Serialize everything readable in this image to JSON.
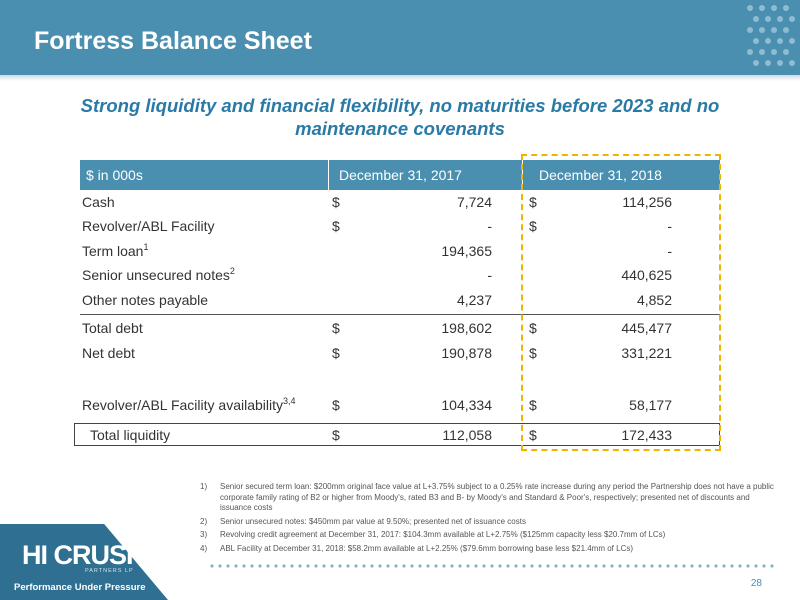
{
  "header": {
    "title": "Fortress Balance Sheet"
  },
  "subtitle": "Strong liquidity and financial flexibility, no maturities before 2023 and no maintenance covenants",
  "table": {
    "columns": [
      "$ in 000s",
      "December 31, 2017",
      "December 31, 2018"
    ],
    "rows": [
      {
        "label": "Cash",
        "sup": "",
        "d1": "$",
        "v1": "7,724",
        "d2": "$",
        "v2": "114,256"
      },
      {
        "label": "Revolver/ABL Facility",
        "sup": "",
        "d1": "$",
        "v1": "-",
        "d2": "$",
        "v2": "-"
      },
      {
        "label": "Term loan",
        "sup": "1",
        "d1": "",
        "v1": "194,365",
        "d2": "",
        "v2": "-"
      },
      {
        "label": "Senior unsecured notes",
        "sup": "2",
        "d1": "",
        "v1": "-",
        "d2": "",
        "v2": "440,625"
      },
      {
        "label": "Other notes payable",
        "sup": "",
        "d1": "",
        "v1": "4,237",
        "d2": "",
        "v2": "4,852"
      },
      {
        "label": "Total debt",
        "sup": "",
        "d1": "$",
        "v1": "198,602",
        "d2": "$",
        "v2": "445,477"
      },
      {
        "label": "Net debt",
        "sup": "",
        "d1": "$",
        "v1": "190,878",
        "d2": "$",
        "v2": "331,221"
      },
      {
        "label": "Revolver/ABL Facility availability",
        "sup": "3,4",
        "d1": "$",
        "v1": "104,334",
        "d2": "$",
        "v2": "58,177"
      },
      {
        "label": "Total liquidity",
        "sup": "",
        "d1": "$",
        "v1": "112,058",
        "d2": "$",
        "v2": "172,433"
      }
    ]
  },
  "notes": [
    {
      "num": "1)",
      "text": "Senior secured term loan: $200mm original face value at L+3.75% subject to a 0.25% rate increase during any period the Partnership does not have a public corporate family rating of B2 or higher from Moody's, rated B3 and B- by Moody's and Standard & Poor's, respectively; presented net of discounts and issuance costs"
    },
    {
      "num": "2)",
      "text": "Senior unsecured notes: $450mm par value at 9.50%; presented net of issuance costs"
    },
    {
      "num": "3)",
      "text": "Revolving credit agreement at December 31, 2017: $104.3mm available at L+2.75% ($125mm capacity less $20.7mm of LCs)"
    },
    {
      "num": "4)",
      "text": "ABL Facility at December 31, 2018: $58.2mm available at L+2.25% ($79.6mm borrowing base less $21.4mm of LCs)"
    }
  ],
  "footer": {
    "logo": "HI CRUSH",
    "logo_sub": "PARTNERS LP",
    "tagline": "Performance Under Pressure",
    "page_number": "28"
  },
  "colors": {
    "header": "#4a8fb0",
    "accent_text": "#2a7aa6",
    "highlight": "#f0b400",
    "logo_bg": "#2e6f92"
  }
}
